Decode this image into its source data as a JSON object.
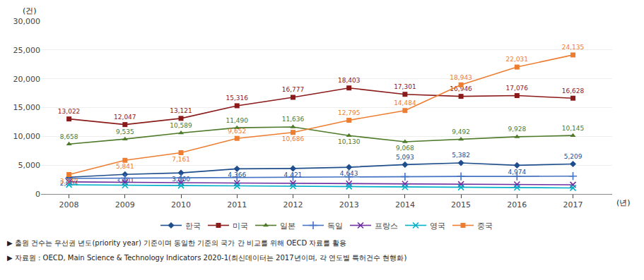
{
  "chart_data": {
    "type": "line",
    "x": [
      2008,
      2009,
      2010,
      2011,
      2012,
      2013,
      2014,
      2015,
      2016,
      2017
    ],
    "xlim": [
      2007.5,
      2017.7
    ],
    "xticks": [
      2008,
      2009,
      2010,
      2011,
      2012,
      2013,
      2014,
      2015,
      2016,
      2017
    ],
    "ylim": [
      0,
      30000
    ],
    "yticks": [
      0,
      {
        "value": 5000,
        "label": "5,000"
      },
      {
        "value": 10000,
        "label": "10,000"
      },
      {
        "value": 15000,
        "label": "15,000"
      },
      {
        "value": 20000,
        "label": "20,000"
      },
      {
        "value": 25000,
        "label": "25,000"
      },
      {
        "value": 30000,
        "label": "30,000"
      }
    ],
    "ylabel": "(건)",
    "xlabel": "(년)",
    "grid": "y",
    "legend": "bottom",
    "annotations": [
      "▶ 출원 건수는 우선권 년도(priority year) 기준이며 동일한 기준의 국가 간 비교를 위해 OECD 자료를 활용",
      "▶ 자료원 : OECD, Main Science & Technology Indicators 2020-1(최신데이터는 2017년이며, 각 연도별 특허건수 현행화)"
    ],
    "series": [
      {
        "name": "한국",
        "color": "#1F4E8C",
        "marker": "diamond",
        "data_labels": true,
        "values": [
          2904,
          3401,
          3660,
          4366,
          4421,
          4643,
          5093,
          5382,
          4974,
          5209
        ],
        "value_labels": [
          "2,904",
          "3,401",
          "3,660",
          "4,366",
          "4,421",
          "4,643",
          "5,093",
          "5,382",
          "4,974",
          "5,209"
        ]
      },
      {
        "name": "미국",
        "color": "#8B1A1A",
        "marker": "square",
        "data_labels": true,
        "values": [
          13022,
          12047,
          13121,
          15316,
          16777,
          18403,
          17301,
          16946,
          17076,
          16628
        ],
        "value_labels": [
          "13,022",
          "12,047",
          "13,121",
          "15,316",
          "16,777",
          "18,403",
          "17,301",
          "16,946",
          "17,076",
          "16,628"
        ]
      },
      {
        "name": "일본",
        "color": "#4E7A2A",
        "marker": "triangle-up",
        "data_labels": true,
        "values": [
          8658,
          9535,
          10589,
          11490,
          11636,
          10130,
          9068,
          9492,
          9928,
          10145
        ],
        "value_labels": [
          "8,658",
          "9,535",
          "10,589",
          "11,490",
          "11,636",
          "10,130",
          "9,068",
          "9,492",
          "9,928",
          "10,145"
        ]
      },
      {
        "name": "독일",
        "color": "#4472C4",
        "marker": "plus",
        "data_labels": false,
        "values": [
          2700,
          2750,
          2800,
          2900,
          2950,
          2980,
          3000,
          3050,
          3050,
          3100
        ]
      },
      {
        "name": "프랑스",
        "color": "#7030A0",
        "marker": "x",
        "data_labels": false,
        "values": [
          2100,
          2000,
          1950,
          1900,
          1850,
          1800,
          1750,
          1700,
          1650,
          1600
        ]
      },
      {
        "name": "영국",
        "color": "#00B0C8",
        "marker": "x",
        "data_labels": false,
        "values": [
          1600,
          1500,
          1450,
          1400,
          1350,
          1300,
          1200,
          1150,
          1100,
          1050
        ]
      },
      {
        "name": "중국",
        "color": "#ED7D31",
        "marker": "square",
        "data_labels": true,
        "values": [
          3370,
          5841,
          7161,
          9652,
          10686,
          12795,
          14484,
          18943,
          22031,
          24135
        ],
        "value_labels": [
          "3,370",
          "5,841",
          "7,161",
          "9,652",
          "10,686",
          "12,795",
          "14,484",
          "18,943",
          "22,031",
          "24,135"
        ]
      }
    ]
  }
}
